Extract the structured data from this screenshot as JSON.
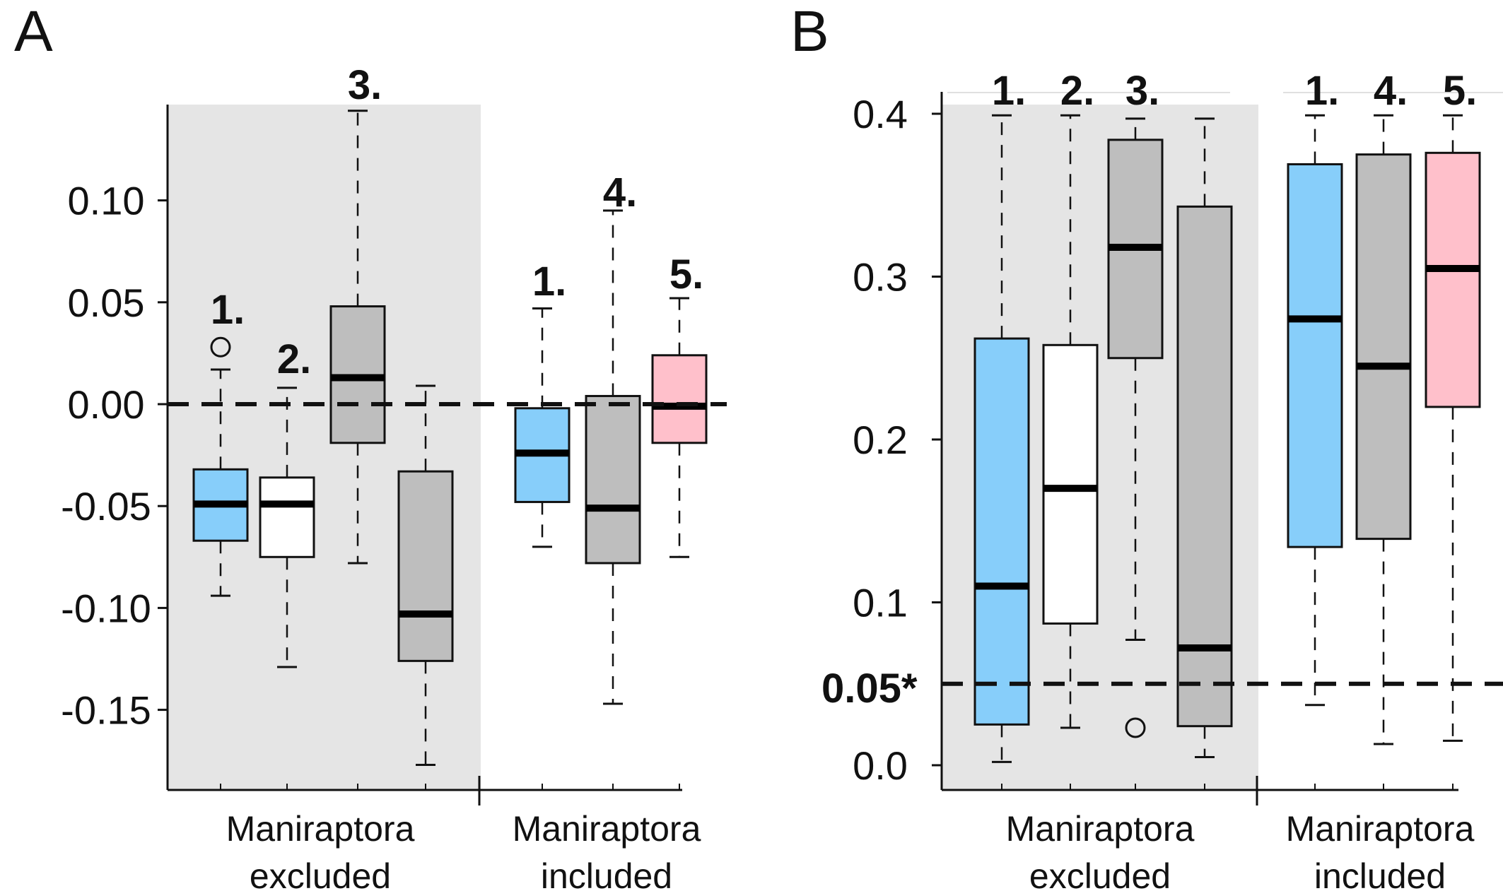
{
  "chart_data": [
    {
      "type": "box",
      "panel_label": "A",
      "ylim": [
        -0.18,
        0.15
      ],
      "yticks": [
        {
          "value": 0.1,
          "label": "0.10"
        },
        {
          "value": 0.05,
          "label": "0.05"
        },
        {
          "value": 0.0,
          "label": "0.00"
        },
        {
          "value": -0.05,
          "label": "-0.05"
        },
        {
          "value": -0.1,
          "label": "-0.10"
        },
        {
          "value": -0.15,
          "label": "-0.15"
        }
      ],
      "reference_line": {
        "value": 0.0,
        "label": ""
      },
      "groups": [
        {
          "line1": "Maniraptora",
          "line2": "excluded",
          "shaded": true
        },
        {
          "line1": "Maniraptora",
          "line2": "included",
          "shaded": false
        }
      ],
      "boxes": [
        {
          "label": "1.",
          "group": 0,
          "color": "#87cefa",
          "whisker_low": -0.094,
          "q1": -0.067,
          "median": -0.049,
          "q3": -0.032,
          "whisker_high": 0.017,
          "outliers": [
            0.028
          ]
        },
        {
          "label": "2.",
          "group": 0,
          "color": "#ffffff",
          "whisker_low": -0.129,
          "q1": -0.075,
          "median": -0.049,
          "q3": -0.036,
          "whisker_high": 0.008,
          "outliers": []
        },
        {
          "label": "3.",
          "group": 0,
          "color": "#bebebe",
          "whisker_low": -0.078,
          "q1": -0.019,
          "median": 0.013,
          "q3": 0.048,
          "whisker_high": 0.144,
          "outliers": []
        },
        {
          "label": "",
          "group": 0,
          "color": "#bebebe",
          "whisker_low": -0.177,
          "q1": -0.126,
          "median": -0.103,
          "q3": -0.033,
          "whisker_high": 0.009,
          "outliers": []
        },
        {
          "label": "1.",
          "group": 1,
          "color": "#87cefa",
          "whisker_low": -0.07,
          "q1": -0.048,
          "median": -0.024,
          "q3": -0.002,
          "whisker_high": 0.047,
          "outliers": []
        },
        {
          "label": "4.",
          "group": 1,
          "color": "#bebebe",
          "whisker_low": -0.147,
          "q1": -0.078,
          "median": -0.051,
          "q3": 0.004,
          "whisker_high": 0.095,
          "outliers": []
        },
        {
          "label": "5.",
          "group": 1,
          "color": "#ffc0cb",
          "whisker_low": -0.075,
          "q1": -0.019,
          "median": -0.001,
          "q3": 0.024,
          "whisker_high": 0.052,
          "outliers": []
        }
      ]
    },
    {
      "type": "box",
      "panel_label": "B",
      "ylim": [
        -0.01,
        0.41
      ],
      "yticks": [
        {
          "value": 0.4,
          "label": "0.4"
        },
        {
          "value": 0.3,
          "label": "0.3"
        },
        {
          "value": 0.2,
          "label": "0.2"
        },
        {
          "value": 0.1,
          "label": "0.1"
        },
        {
          "value": 0.0,
          "label": "0.0"
        }
      ],
      "reference_line": {
        "value": 0.05,
        "label": "0.05*"
      },
      "groups": [
        {
          "line1": "Maniraptora",
          "line2": "excluded",
          "shaded": true
        },
        {
          "line1": "Maniraptora",
          "line2": "included",
          "shaded": false
        }
      ],
      "boxes": [
        {
          "label": "1.",
          "group": 0,
          "color": "#87cefa",
          "whisker_low": 0.002,
          "q1": 0.025,
          "median": 0.11,
          "q3": 0.262,
          "whisker_high": 0.399,
          "outliers": []
        },
        {
          "label": "2.",
          "group": 0,
          "color": "#ffffff",
          "whisker_low": 0.023,
          "q1": 0.087,
          "median": 0.17,
          "q3": 0.258,
          "whisker_high": 0.399,
          "outliers": []
        },
        {
          "label": "3.",
          "group": 0,
          "color": "#bebebe",
          "whisker_low": 0.077,
          "q1": 0.25,
          "median": 0.318,
          "q3": 0.384,
          "whisker_high": 0.397,
          "outliers": [
            0.023
          ]
        },
        {
          "label": "",
          "group": 0,
          "color": "#bebebe",
          "whisker_low": 0.005,
          "q1": 0.024,
          "median": 0.072,
          "q3": 0.343,
          "whisker_high": 0.397,
          "outliers": []
        },
        {
          "label": "1.",
          "group": 1,
          "color": "#87cefa",
          "whisker_low": 0.037,
          "q1": 0.134,
          "median": 0.274,
          "q3": 0.369,
          "whisker_high": 0.399,
          "outliers": []
        },
        {
          "label": "4.",
          "group": 1,
          "color": "#bebebe",
          "whisker_low": 0.013,
          "q1": 0.139,
          "median": 0.245,
          "q3": 0.375,
          "whisker_high": 0.399,
          "outliers": []
        },
        {
          "label": "5.",
          "group": 1,
          "color": "#ffc0cb",
          "whisker_low": 0.015,
          "q1": 0.22,
          "median": 0.305,
          "q3": 0.376,
          "whisker_high": 0.399,
          "outliers": []
        }
      ]
    }
  ]
}
